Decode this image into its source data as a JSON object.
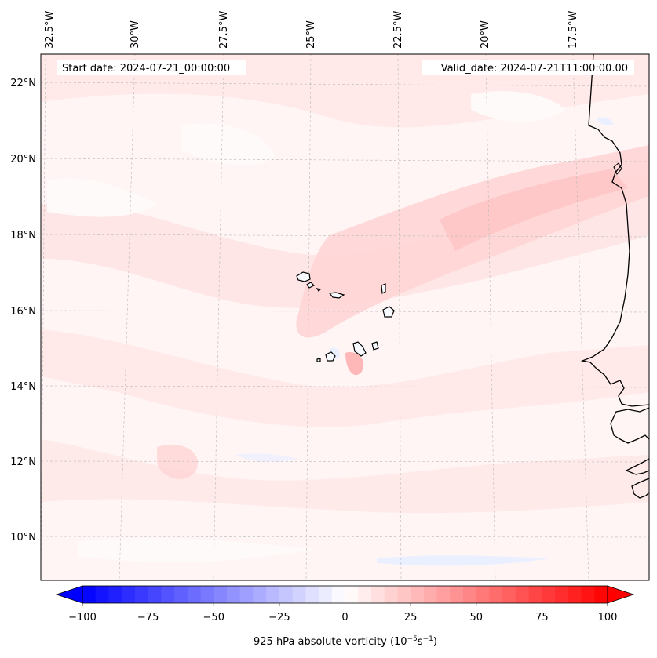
{
  "header": {
    "start_date": "Start date: 2024-07-21_00:00:00",
    "valid_date": "Valid_date: 2024-07-21T11:00:00.00"
  },
  "longitude_labels": [
    "32.5°W",
    "30°W",
    "27.5°W",
    "25°W",
    "22.5°W",
    "20°W",
    "17.5°W"
  ],
  "latitude_labels": [
    "22°N",
    "20°N",
    "18°N",
    "16°N",
    "14°N",
    "12°N",
    "10°N"
  ],
  "colorbar": {
    "ticks": [
      "−100",
      "−75",
      "−50",
      "−25",
      "0",
      "25",
      "50",
      "75",
      "100"
    ],
    "label_main": "925 hPa absolute vorticity (10",
    "label_exp1": "−5",
    "label_mid": "s",
    "label_exp2": "−1",
    "label_end": ")",
    "range": [
      -100,
      100
    ],
    "levels": 40,
    "colormap": "bwr",
    "min_color": "#0000ff",
    "mid_color": "#ffffff",
    "max_color": "#ff0000"
  },
  "map": {
    "background_color": "#fff6f6",
    "positive_field_color": "#ffd6d6",
    "negative_field_color": "#e6eeff",
    "coastline_color": "#000000",
    "gridline_style": "dashed gray"
  }
}
